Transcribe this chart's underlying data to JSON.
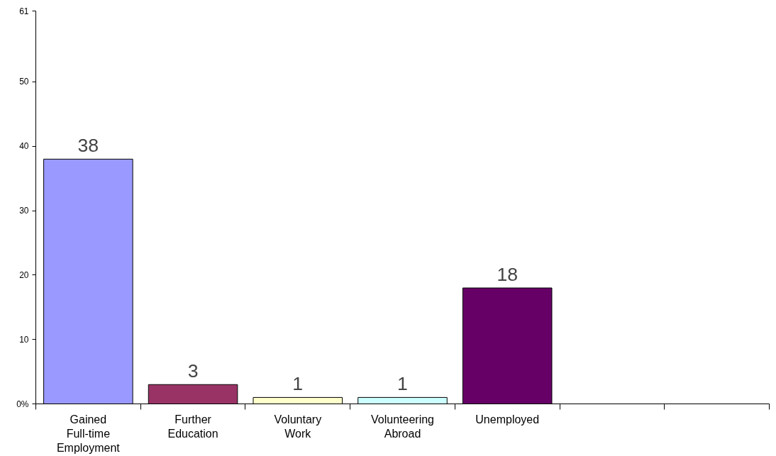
{
  "chart_data": {
    "type": "bar",
    "categories": [
      "Gained Full-time Employment",
      "Further Education",
      "Voluntary Work",
      "Volunteering Abroad",
      "Unemployed",
      null,
      null
    ],
    "values": [
      38,
      3,
      1,
      1,
      18,
      null,
      null
    ],
    "colors": [
      "#9999ff",
      "#993366",
      "#ffffcc",
      "#ccffff",
      "#660066",
      "#9999ff",
      "#9999ff"
    ],
    "data_labels": true,
    "ylim": [
      0,
      61
    ],
    "yticks": [
      {
        "value": 0,
        "label": "0%"
      },
      10,
      20,
      30,
      40,
      50,
      61
    ],
    "grid": false
  }
}
